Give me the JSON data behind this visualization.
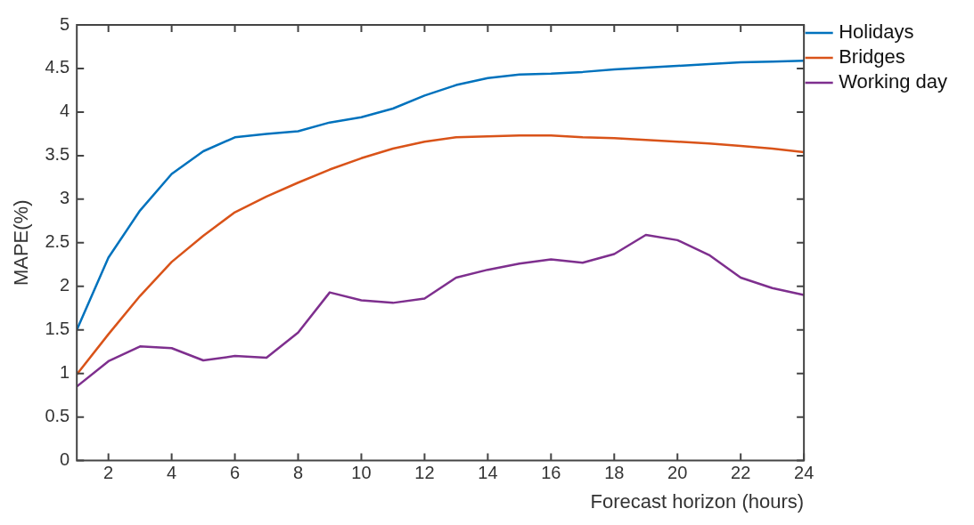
{
  "chart_data": {
    "type": "line",
    "xlabel": "Forecast horizon (hours)",
    "ylabel": "MAPE(%)",
    "x": [
      1,
      2,
      3,
      4,
      5,
      6,
      7,
      8,
      9,
      10,
      11,
      12,
      13,
      14,
      15,
      16,
      17,
      18,
      19,
      20,
      21,
      22,
      23,
      24
    ],
    "series": [
      {
        "name": "Holidays",
        "color": "#0072bd",
        "values": [
          1.5,
          2.33,
          2.87,
          3.29,
          3.55,
          3.71,
          3.75,
          3.78,
          3.88,
          3.94,
          4.04,
          4.19,
          4.31,
          4.39,
          4.43,
          4.44,
          4.46,
          4.49,
          4.51,
          4.53,
          4.55,
          4.57,
          4.58,
          4.59
        ]
      },
      {
        "name": "Bridges",
        "color": "#d95319",
        "values": [
          0.99,
          1.45,
          1.89,
          2.28,
          2.58,
          2.85,
          3.03,
          3.19,
          3.34,
          3.47,
          3.58,
          3.66,
          3.71,
          3.72,
          3.73,
          3.73,
          3.71,
          3.7,
          3.68,
          3.66,
          3.64,
          3.61,
          3.58,
          3.54
        ]
      },
      {
        "name": "Working day",
        "color": "#7e2f8e",
        "values": [
          0.85,
          1.14,
          1.31,
          1.29,
          1.15,
          1.2,
          1.18,
          1.47,
          1.93,
          1.84,
          1.81,
          1.86,
          2.1,
          2.19,
          2.26,
          2.31,
          2.27,
          2.37,
          2.59,
          2.53,
          2.36,
          2.1,
          1.98,
          1.9
        ]
      }
    ],
    "xlim": [
      1,
      24
    ],
    "xticks": [
      2,
      4,
      6,
      8,
      10,
      12,
      14,
      16,
      18,
      20,
      22,
      24
    ],
    "ylim": [
      0,
      5
    ],
    "yticks": [
      0,
      0.5,
      1,
      1.5,
      2,
      2.5,
      3,
      3.5,
      4,
      4.5,
      5
    ],
    "grid": false,
    "legend": "top right",
    "marker": "none",
    "line_style": "solid"
  }
}
